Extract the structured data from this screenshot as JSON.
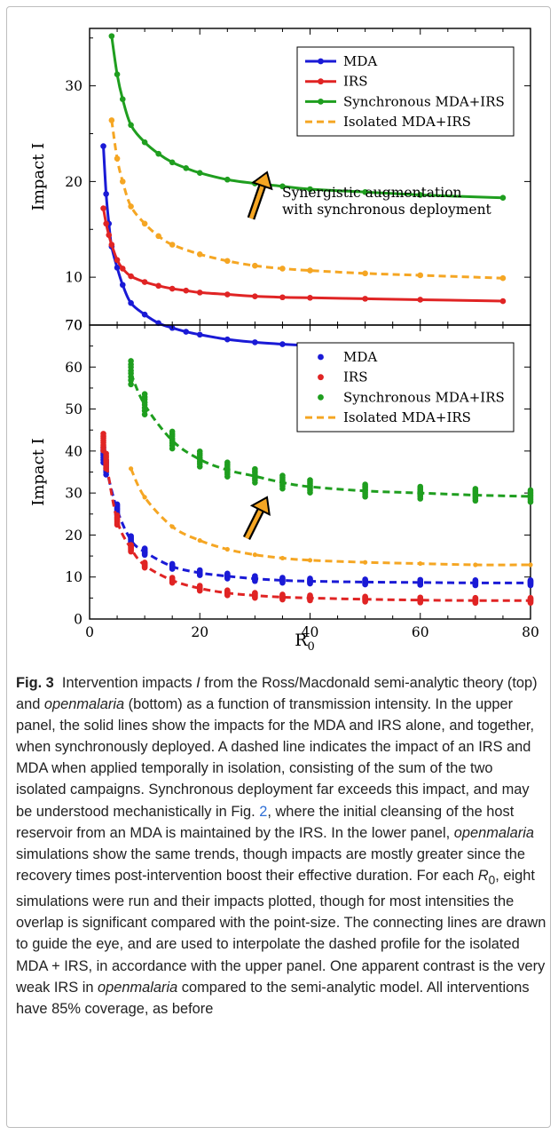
{
  "chart_data": [
    {
      "type": "line",
      "panel": "top",
      "xlabel": "",
      "ylabel": "Impact I",
      "xlim": [
        0,
        80
      ],
      "ylim": [
        5,
        36
      ],
      "y_ticks": [
        "10",
        "20",
        "30"
      ],
      "y_bottom_label": "70",
      "grid": false,
      "legend_position": "top-right",
      "annotation": [
        "Synergistic augmentation",
        "with synchronous deployment"
      ],
      "series": [
        {
          "name": "MDA",
          "color": "#1a1ad6",
          "style": "solid",
          "x": [
            2.5,
            3,
            3.5,
            4,
            5,
            6,
            7.5,
            10,
            12.5,
            15,
            17.5,
            20,
            25,
            30,
            35,
            40,
            50,
            60,
            75
          ],
          "y": [
            23.7,
            18.7,
            15.6,
            13.2,
            11.0,
            9.2,
            7.3,
            6.1,
            5.2,
            4.7,
            4.3,
            4.0,
            3.5,
            3.2,
            3.0,
            2.85,
            2.65,
            2.5,
            2.35
          ]
        },
        {
          "name": "IRS",
          "color": "#e02424",
          "style": "solid",
          "x": [
            2.5,
            3,
            3.5,
            4,
            5,
            6,
            7.5,
            10,
            12.5,
            15,
            17.5,
            20,
            25,
            30,
            35,
            40,
            50,
            60,
            75
          ],
          "y": [
            17.2,
            15.6,
            14.4,
            13.4,
            11.8,
            10.9,
            10.1,
            9.5,
            9.1,
            8.8,
            8.6,
            8.4,
            8.2,
            8.0,
            7.9,
            7.85,
            7.75,
            7.65,
            7.5
          ]
        },
        {
          "name": "Synchronous MDA+IRS",
          "color": "#1f9e1f",
          "style": "solid",
          "x": [
            4,
            5,
            6,
            7.5,
            10,
            12.5,
            15,
            17.5,
            20,
            25,
            30,
            35,
            40,
            50,
            60,
            75
          ],
          "y": [
            35.2,
            31.2,
            28.6,
            25.9,
            24.1,
            22.9,
            22.0,
            21.4,
            20.9,
            20.2,
            19.8,
            19.5,
            19.2,
            18.9,
            18.6,
            18.3
          ]
        },
        {
          "name": "Isolated MDA+IRS",
          "color": "#f5a623",
          "style": "dashed",
          "x": [
            4,
            5,
            6,
            7.5,
            10,
            12.5,
            15,
            20,
            25,
            30,
            35,
            40,
            50,
            60,
            75
          ],
          "y": [
            26.4,
            22.4,
            20.0,
            17.4,
            15.6,
            14.3,
            13.4,
            12.4,
            11.7,
            11.2,
            10.9,
            10.7,
            10.4,
            10.2,
            9.9
          ]
        }
      ]
    },
    {
      "type": "scatter",
      "panel": "bottom",
      "xlabel": "R",
      "xlabel_subscript": "0",
      "ylabel": "Impact I",
      "xlim": [
        0,
        80
      ],
      "ylim": [
        0,
        70
      ],
      "x_ticks": [
        "0",
        "20",
        "40",
        "60",
        "80"
      ],
      "y_ticks": [
        "0",
        "10",
        "20",
        "30",
        "40",
        "50",
        "60",
        "70"
      ],
      "grid": false,
      "legend_position": "top-right",
      "series": [
        {
          "name": "MDA",
          "color": "#1a1ad6",
          "marker": "dot",
          "line": "dashed",
          "x": [
            2.5,
            3,
            5,
            7.5,
            10,
            15,
            20,
            25,
            30,
            35,
            40,
            50,
            60,
            70,
            80
          ],
          "y": [
            39.0,
            36.0,
            26.0,
            18.8,
            16.0,
            12.5,
            11.0,
            10.2,
            9.6,
            9.2,
            9.0,
            8.8,
            8.7,
            8.6,
            8.6
          ]
        },
        {
          "name": "IRS",
          "color": "#e02424",
          "marker": "dot",
          "line": "dashed",
          "x": [
            2.5,
            3,
            5,
            7.5,
            10,
            15,
            20,
            25,
            30,
            35,
            40,
            50,
            60,
            70,
            80
          ],
          "y": [
            42.0,
            37.5,
            23.5,
            16.8,
            12.8,
            9.2,
            7.3,
            6.2,
            5.6,
            5.2,
            5.0,
            4.7,
            4.5,
            4.4,
            4.4
          ]
        },
        {
          "name": "Synchronous MDA+IRS",
          "color": "#1f9e1f",
          "marker": "dot",
          "line": "dashed",
          "x": [
            7.5,
            10,
            15,
            20,
            25,
            30,
            35,
            40,
            50,
            60,
            70,
            80
          ],
          "y": [
            58.5,
            51.0,
            42.5,
            38.0,
            35.5,
            34.0,
            32.5,
            31.5,
            30.5,
            30.0,
            29.5,
            29.2
          ]
        },
        {
          "name": "Isolated MDA+IRS",
          "color": "#f5a623",
          "marker": "none",
          "line": "dashed",
          "x": [
            7.5,
            10,
            15,
            20,
            25,
            30,
            35,
            40,
            50,
            60,
            70,
            80
          ],
          "y": [
            35.8,
            29.0,
            22.0,
            18.7,
            16.6,
            15.3,
            14.5,
            14.0,
            13.5,
            13.2,
            12.9,
            12.9
          ]
        }
      ]
    }
  ],
  "caption": {
    "fig_label": "Fig. 3",
    "text_1": "Intervention impacts ",
    "italic_I": "I",
    "text_2": " from the Ross/Macdonald semi-analytic theory (top) and ",
    "italic_openmalaria_1": "openmalaria",
    "text_3": " (bottom) as a function of transmission intensity. In the upper panel, the solid lines show the impacts for the MDA and IRS alone, and together, when synchronously deployed. A dashed line indicates the impact of an IRS and MDA when applied temporally in isolation, consisting of the sum of the two isolated campaigns. Synchronous deployment far exceeds this impact, and may be understood mechanistically in Fig. ",
    "link_fig": "2",
    "text_4": ", where the initial cleansing of the host reservoir from an MDA is maintained by the IRS. In the lower panel, ",
    "italic_openmalaria_2": "openmalaria",
    "text_5": " simulations show the same trends, though impacts are mostly greater since the recovery times post-intervention boost their effective duration. For each ",
    "italic_R": "R",
    "sub_0": "0",
    "text_6": ", eight simulations were run and their impacts plotted, though for most intensities the overlap is significant compared with the point-size. The connecting lines are drawn to guide the eye, and are used to interpolate the dashed profile for the isolated MDA + IRS, in accordance with the upper panel. One apparent contrast is the very weak IRS in ",
    "italic_openmalaria_3": "openmalaria",
    "text_7": " compared to the semi-analytic model. All interventions have 85% coverage, as before"
  }
}
